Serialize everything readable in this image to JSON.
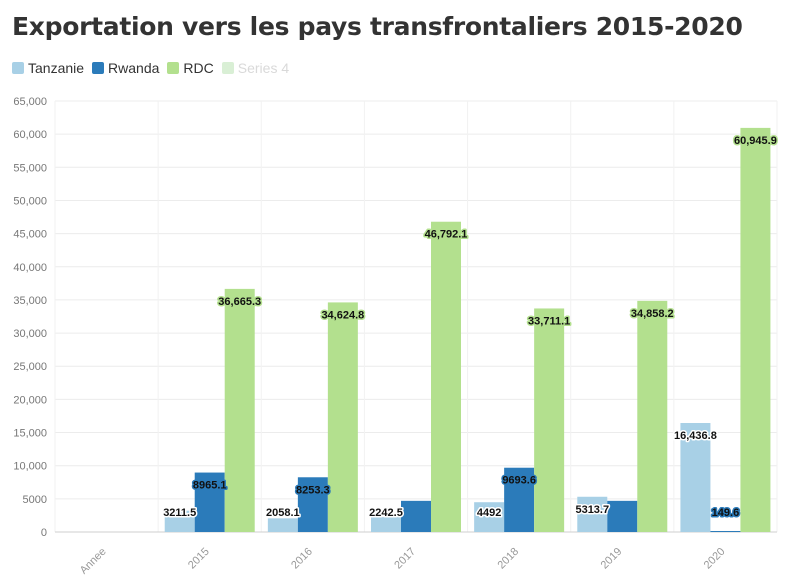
{
  "title": "Exportation vers les pays transfrontaliers 2015-2020",
  "legend": [
    {
      "name": "Tanzanie",
      "color": "#a8d0e6",
      "muted": false
    },
    {
      "name": "Rwanda",
      "color": "#2b7bba",
      "muted": false
    },
    {
      "name": "RDC",
      "color": "#b3e08e",
      "muted": false
    },
    {
      "name": "Series 4",
      "color": "#d9efd5",
      "muted": true
    }
  ],
  "chart_data": {
    "type": "bar",
    "title": "Exportation vers les pays transfrontaliers 2015-2020",
    "categories": [
      "Annee",
      "2015",
      "2016",
      "2017",
      "2018",
      "2019",
      "2020"
    ],
    "ylim": [
      0,
      65000
    ],
    "yticks": [
      0,
      5000,
      10000,
      15000,
      20000,
      25000,
      30000,
      35000,
      40000,
      45000,
      50000,
      55000,
      60000,
      65000
    ],
    "ytick_labels": [
      "0",
      "5000",
      "10,000",
      "15,000",
      "20,000",
      "25,000",
      "30,000",
      "35,000",
      "40,000",
      "45,000",
      "50,000",
      "55,000",
      "60,000",
      "65,000"
    ],
    "grid": true,
    "legend_position": "top-left",
    "series": [
      {
        "name": "Tanzanie",
        "color": "#a8d0e6",
        "values": [
          null,
          3211.5,
          2058.1,
          2242.5,
          4492,
          5313.7,
          16436.8
        ],
        "labels": [
          null,
          "3211.5",
          "2058.1",
          "2242.5",
          "4492",
          "5313.7",
          "16,436.8"
        ]
      },
      {
        "name": "Rwanda",
        "color": "#2b7bba",
        "values": [
          null,
          8965.1,
          8253.3,
          4700,
          9693.6,
          4700,
          149.6
        ],
        "labels": [
          null,
          "8965.1",
          "8253.3",
          null,
          "9693.6",
          null,
          "149.6"
        ]
      },
      {
        "name": "RDC",
        "color": "#b3e08e",
        "values": [
          null,
          36665.3,
          34624.8,
          46792.1,
          33711.1,
          34858.2,
          60945.9
        ],
        "labels": [
          null,
          "36,665.3",
          "34,624.8",
          "46,792.1",
          "33,711.1",
          "34,858.2",
          "60,945.9"
        ]
      }
    ]
  }
}
